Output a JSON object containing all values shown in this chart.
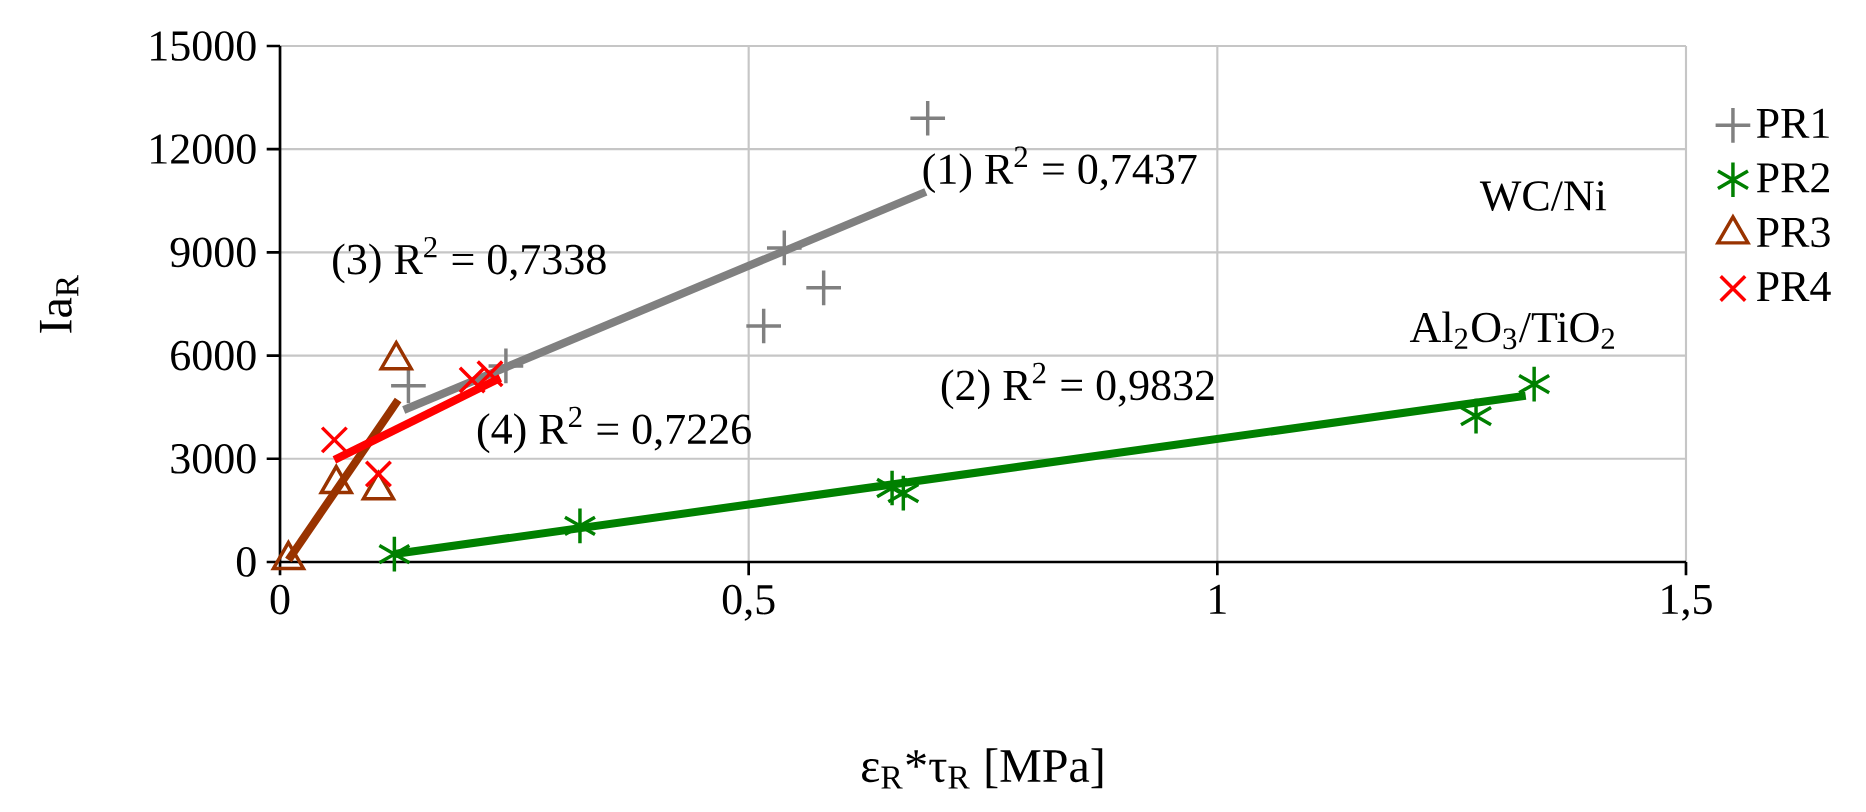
{
  "chart_data": {
    "type": "scatter",
    "xlabel": "ε$_{R}$*τ$_{R}$ [MPa]",
    "ylabel": "Ia$_{R}$",
    "xlim": [
      0,
      1.5
    ],
    "ylim": [
      0,
      15000
    ],
    "xticks": [
      0,
      {
        "value": 0.5,
        "label": "0,5"
      },
      1,
      {
        "value": 1.5,
        "label": "1,5"
      }
    ],
    "yticks": [
      0,
      3000,
      6000,
      9000,
      12000,
      15000
    ],
    "grid": true,
    "legend": "right",
    "series": [
      {
        "name": "PR1",
        "marker": "cross",
        "color": "#808080",
        "x": [
          0.691,
          0.538,
          0.58,
          0.516,
          0.241,
          0.137
        ],
        "values": [
          12900,
          9130,
          7970,
          6860,
          5700,
          5120
        ]
      },
      {
        "name": "PR2",
        "color": "#008000",
        "x": [
          0.122,
          0.32,
          0.653,
          0.665,
          1.276,
          1.338
        ],
        "values": [
          230,
          1050,
          2150,
          2000,
          4240,
          5170
        ]
      },
      {
        "name": "PR3",
        "marker": "triangle",
        "color": "#993300",
        "x": [
          0.009,
          0.06,
          0.105,
          0.124
        ],
        "values": [
          60,
          2270,
          2090,
          5870
        ]
      },
      {
        "name": "PR4",
        "marker": "x",
        "color": "#ff0000",
        "x": [
          0.058,
          0.105,
          0.205,
          0.224
        ],
        "values": [
          3550,
          2560,
          5290,
          5470
        ]
      },
      {
        "type": "line",
        "marker": "none",
        "color": "#808080",
        "x": [
          0.132,
          0.689
        ],
        "values": [
          4420,
          10760
        ]
      },
      {
        "type": "line",
        "marker": "none",
        "color": "#008000",
        "x": [
          0.122,
          1.329
        ],
        "values": [
          230,
          4830
        ]
      },
      {
        "type": "line",
        "marker": "none",
        "color": "#993300",
        "x": [
          0.009,
          0.126
        ],
        "values": [
          60,
          4710
        ]
      },
      {
        "type": "line",
        "marker": "none",
        "color": "#ff0000",
        "x": [
          0.058,
          0.235
        ],
        "values": [
          2970,
          5350
        ]
      }
    ],
    "annotations": [
      "(1) R$^{2}$ = 0,7437",
      "(2) R$^{2}$ = 0,9832",
      "(3) R$^{2}$ = 0,7338",
      "(4) R$^{2}$ = 0,7226",
      "WC/Ni",
      "Al$_{2}$O$_{3}$/TiO$_{2}$"
    ]
  }
}
